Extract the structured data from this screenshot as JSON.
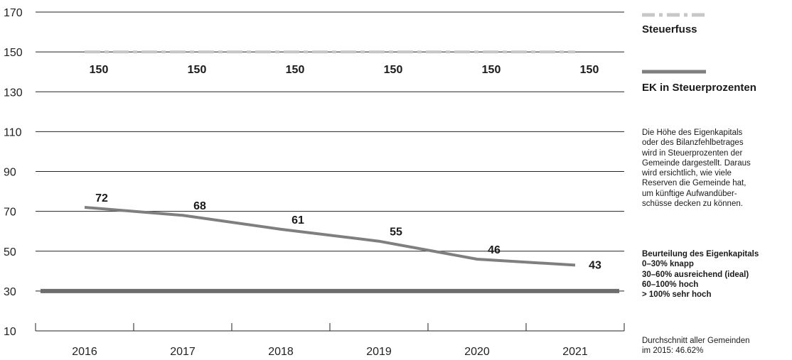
{
  "chart_data": {
    "type": "line",
    "categories": [
      "2016",
      "2017",
      "2018",
      "2019",
      "2020",
      "2021"
    ],
    "series": [
      {
        "name": "Steuerfuss",
        "values": [
          150,
          150,
          150,
          150,
          150,
          150
        ],
        "style": "dash-dot",
        "color": "#c7c7c7"
      },
      {
        "name": "EK in Steuerprozenten",
        "values": [
          72,
          68,
          61,
          55,
          46,
          43
        ],
        "style": "solid",
        "color": "#7f7f7f"
      }
    ],
    "reference_value": 30,
    "reference_color": "#6d6d6d",
    "ylim": [
      10,
      170
    ],
    "yticks": [
      10,
      30,
      50,
      70,
      90,
      110,
      130,
      150,
      170
    ],
    "grid": true,
    "legend_position": "right"
  },
  "legend": {
    "items": [
      {
        "label": "Steuerfuss"
      },
      {
        "label": "EK in Steuerprozenten"
      }
    ]
  },
  "notes": {
    "description": [
      "Die Höhe des Eigenkapitals",
      "oder des Bilanzfehlbetrages",
      "wird in Steuerprozenten der",
      "Gemeinde dargestellt. Daraus",
      "wird ersichtlich, wie viele",
      "Reserven die Gemeinde hat,",
      "um künftige Aufwandüber-",
      "schüsse decken zu können."
    ],
    "rating_title": "Beurteilung des Eigenkapitals",
    "rating_items": [
      "0–30% knapp",
      "30–60% ausreichend (ideal)",
      "60–100% hoch",
      "> 100% sehr hoch"
    ],
    "average": [
      "Durchschnitt aller Gemeinden",
      "im 2015: 46.62%"
    ]
  }
}
